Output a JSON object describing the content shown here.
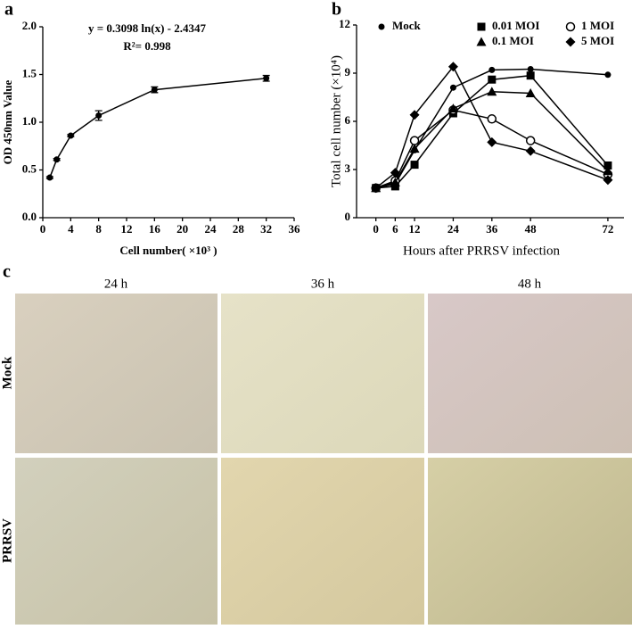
{
  "chart_data": [
    {
      "type": "line",
      "label": "a",
      "annotations": [
        "y = 0.3098 ln(x) - 2.4347",
        "R²= 0.998"
      ],
      "x_label": "Cell number( ×10³ )",
      "y_label": "OD 450nm Value",
      "x": [
        1,
        2,
        4,
        8,
        16,
        32
      ],
      "values": [
        0.42,
        0.61,
        0.86,
        1.07,
        1.34,
        1.46
      ],
      "errors": [
        0.01,
        0.01,
        0.01,
        0.05,
        0.03,
        0.03
      ],
      "color": "#000000",
      "marker": "circle",
      "xlim": [
        0,
        36
      ],
      "xticks": [
        0,
        4,
        8,
        12,
        16,
        20,
        24,
        28,
        32,
        36
      ],
      "ylim": [
        0,
        2
      ],
      "yticks": [
        {
          "value": 0,
          "label": "0.0"
        },
        0.5,
        {
          "value": 1,
          "label": "1.0"
        },
        1.5,
        {
          "value": 2,
          "label": "2.0"
        }
      ]
    },
    {
      "type": "line",
      "label": "b",
      "x_label": "Hours after PRRSV infection",
      "y_label": "Total cell number (×10⁴)",
      "x": [
        0,
        6,
        12,
        24,
        36,
        48,
        72
      ],
      "series": [
        {
          "name": "Mock",
          "color": "#000000",
          "marker": "circle",
          "values": [
            1.85,
            2.1,
            4.2,
            8.1,
            9.2,
            9.25,
            8.9
          ]
        },
        {
          "name": "0.01 MOI",
          "color": "#000000",
          "marker": "square",
          "values": [
            1.85,
            1.95,
            3.3,
            6.5,
            8.6,
            8.85,
            3.25
          ]
        },
        {
          "name": "1 MOI",
          "color": "#000000",
          "marker": "circle-open",
          "values": [
            1.85,
            2.3,
            4.8,
            6.7,
            6.15,
            4.8,
            2.7
          ]
        },
        {
          "name": "0.1 MOI",
          "color": "#000000",
          "marker": "triangle",
          "values": [
            1.85,
            2.2,
            4.3,
            6.8,
            7.85,
            7.75,
            2.9
          ]
        },
        {
          "name": "5 MOI",
          "color": "#000000",
          "marker": "diamond",
          "values": [
            1.85,
            2.8,
            6.4,
            9.4,
            4.7,
            4.15,
            2.35
          ]
        }
      ],
      "xlim": [
        -6,
        77
      ],
      "xticks": [
        0,
        6,
        12,
        24,
        36,
        48,
        72
      ],
      "ylim": [
        0,
        12
      ],
      "yticks": [
        0,
        3,
        6,
        9,
        12
      ]
    }
  ],
  "micrographs": {
    "label": "c",
    "columns": [
      "24 h",
      "36 h",
      "48 h"
    ],
    "rows": [
      "Mock",
      "PRRSV"
    ]
  }
}
